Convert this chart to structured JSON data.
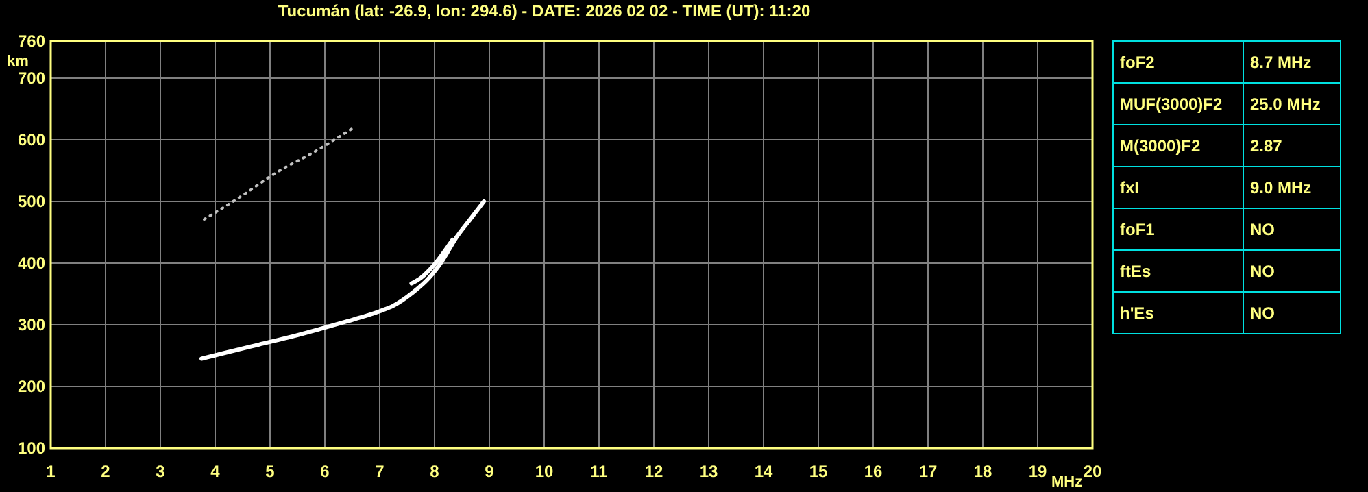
{
  "chart_data": [
    {
      "type": "line",
      "title": "Tucumán (lat: -26.9, lon: 294.6) - DATE: 2026 02 02 - TIME (UT): 11:20",
      "xlabel": "MHz",
      "ylabel": "km",
      "xlim": [
        1,
        20
      ],
      "xticks": [
        1,
        2,
        3,
        4,
        5,
        6,
        7,
        8,
        9,
        10,
        11,
        12,
        13,
        14,
        15,
        16,
        17,
        18,
        19,
        20
      ],
      "ylim": [
        100,
        760
      ],
      "yticks": [
        100,
        200,
        300,
        400,
        500,
        600,
        700,
        760
      ],
      "grid": true,
      "marker": "none",
      "series": [
        {
          "color": "#ffffff",
          "x": [
            3.75,
            4.2,
            4.8,
            5.4,
            5.9,
            6.5,
            7.0,
            7.25,
            7.6,
            7.9,
            8.15,
            8.4,
            8.65,
            8.9
          ],
          "values": [
            245,
            255,
            268,
            281,
            293,
            308,
            322,
            331,
            352,
            376,
            405,
            442,
            471,
            500
          ]
        },
        {
          "color": "#ffffff",
          "x": [
            7.58,
            7.75,
            8.0,
            8.33
          ],
          "values": [
            367,
            376,
            398,
            438
          ]
        },
        {
          "color": "#c0c0c0",
          "line_style": "dotted",
          "x": [
            3.8,
            4.5,
            5.1,
            5.8,
            6.53
          ],
          "values": [
            471,
            510,
            546,
            580,
            620
          ]
        }
      ]
    },
    {
      "type": "other",
      "annotations": [
        "foF2",
        "8.7 MHz",
        "MUF(3000)F2",
        "25.0 MHz",
        "M(3000)F2",
        "2.87",
        "fxI",
        "9.0 MHz",
        "foF1",
        "NO",
        "ftEs",
        "NO",
        "h'Es",
        "NO"
      ]
    }
  ]
}
